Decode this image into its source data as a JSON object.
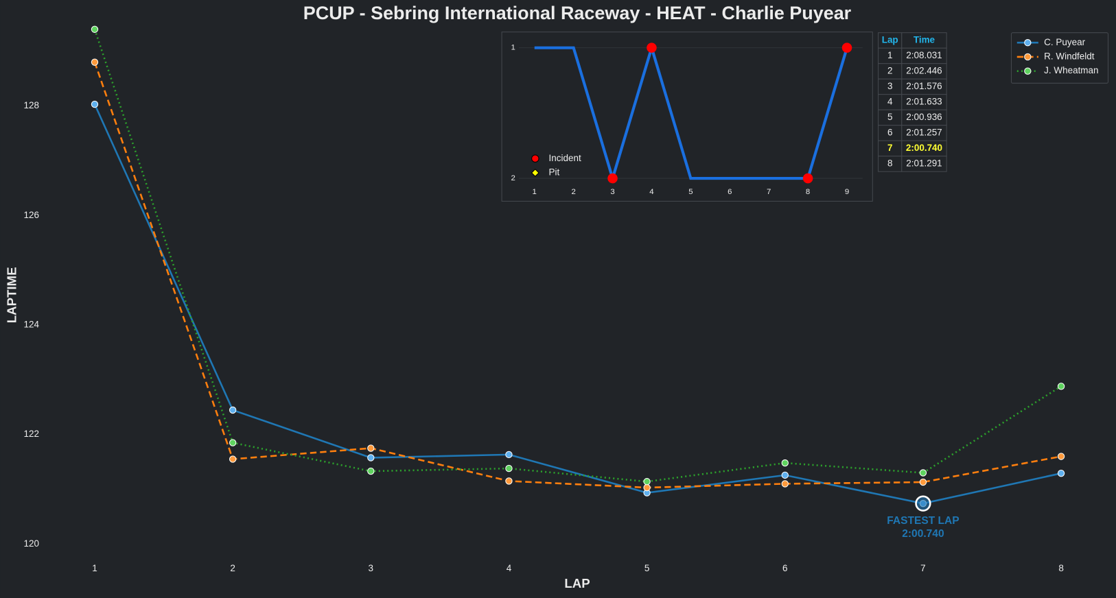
{
  "chart_data": [
    {
      "type": "line",
      "title": "PCUP - Sebring International Raceway - HEAT - Charlie Puyear",
      "xlabel": "LAP",
      "ylabel": "LAPTIME",
      "x": [
        1,
        2,
        3,
        4,
        5,
        6,
        7,
        8
      ],
      "series": [
        {
          "name": "C. Puyear",
          "color": "#1f77b4",
          "marker_color": "#5fb0ee",
          "linestyle": "solid",
          "values": [
            128.031,
            122.446,
            121.576,
            121.633,
            120.936,
            121.257,
            120.74,
            121.291
          ]
        },
        {
          "name": "R. Windfeldt",
          "color": "#ff7f0e",
          "marker_color": "#ff9a3c",
          "linestyle": "dashed",
          "values": [
            128.8,
            121.55,
            121.75,
            121.15,
            121.03,
            121.1,
            121.13,
            121.6
          ]
        },
        {
          "name": "J. Wheatman",
          "color": "#2ca02c",
          "marker_color": "#5fd35f",
          "linestyle": "dotted",
          "values": [
            129.4,
            121.85,
            121.33,
            121.38,
            121.14,
            121.48,
            121.3,
            122.88
          ]
        }
      ],
      "xlim": [
        0.83,
        8.17
      ],
      "ylim": [
        119.65,
        129.45
      ],
      "xticks": [
        1,
        2,
        3,
        4,
        5,
        6,
        7,
        8
      ],
      "yticks": [
        120,
        122,
        124,
        126,
        128
      ],
      "grid": false,
      "legend": "upper right",
      "annotation": {
        "text": "FASTEST LAP",
        "label": "2:00.740",
        "x": 7,
        "y": 120.74,
        "color": "#1f77b4"
      }
    },
    {
      "type": "step-line",
      "x": [
        1,
        2,
        3,
        4,
        5,
        6,
        7,
        8,
        9
      ],
      "values": [
        1,
        1,
        2,
        1,
        2,
        2,
        2,
        2,
        1
      ],
      "color": "#1a6fdf",
      "markers": [
        {
          "name": "Incident",
          "color": "#ff0000",
          "marker": "circle",
          "x": [
            3,
            4,
            8,
            9
          ],
          "values": [
            2,
            1,
            2,
            1
          ]
        },
        {
          "name": "Pit",
          "color": "#ffff00",
          "marker": "diamond",
          "x": [],
          "values": []
        }
      ],
      "xlim": [
        0.6,
        9.4
      ],
      "ylim": [
        2.05,
        0.95
      ],
      "xticks": [
        1,
        2,
        3,
        4,
        5,
        6,
        7,
        8,
        9
      ],
      "yticks": [
        1,
        2
      ],
      "grid": true,
      "legend": "lower left"
    }
  ],
  "lap_table": {
    "columns": [
      "Lap",
      "Time"
    ],
    "rows": [
      [
        1,
        "2:08.031"
      ],
      [
        2,
        "2:02.446"
      ],
      [
        3,
        "2:01.576"
      ],
      [
        4,
        "2:01.633"
      ],
      [
        5,
        "2:00.936"
      ],
      [
        6,
        "2:01.257"
      ],
      [
        7,
        "2:00.740"
      ],
      [
        8,
        "2:01.291"
      ]
    ]
  }
}
